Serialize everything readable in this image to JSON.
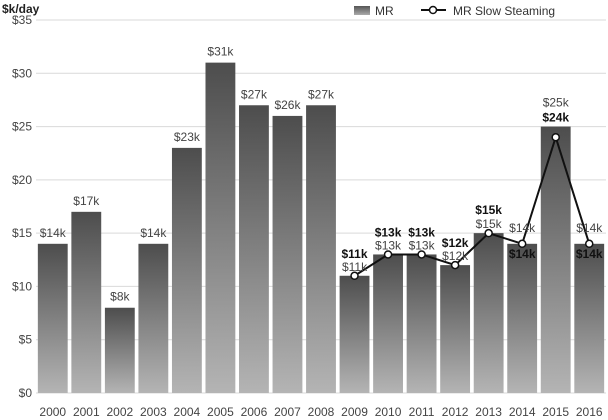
{
  "chart_data": {
    "type": "bar",
    "title": "",
    "xlabel": "",
    "ylabel": "$k/day",
    "ylim": [
      0,
      35
    ],
    "yticks": [
      0,
      5,
      10,
      15,
      20,
      25,
      30,
      35
    ],
    "ytick_labels": [
      "$0",
      "$5",
      "$10",
      "$15",
      "$20",
      "$25",
      "$30",
      "$35"
    ],
    "grid": true,
    "legend_position": "top-right",
    "categories": [
      "2000",
      "2001",
      "2002",
      "2003",
      "2004",
      "2005",
      "2006",
      "2007",
      "2008",
      "2009",
      "2010",
      "2011",
      "2012",
      "2013",
      "2014",
      "2015",
      "2016"
    ],
    "series": [
      {
        "name": "MR",
        "type": "bar",
        "values": [
          14,
          17,
          8,
          14,
          23,
          31,
          27,
          26,
          27,
          11,
          13,
          13,
          12,
          15,
          14,
          25,
          14
        ],
        "labels": [
          "$14k",
          "$17k",
          "$8k",
          "$14k",
          "$23k",
          "$31k",
          "$27k",
          "$26k",
          "$27k",
          "$11k",
          "$13k",
          "$13k",
          "$12k",
          "$15k",
          "$14k",
          "$25k",
          "$14k"
        ]
      },
      {
        "name": "MR Slow Steaming",
        "type": "line",
        "x": [
          "2009",
          "2010",
          "2011",
          "2012",
          "2013",
          "2014",
          "2015",
          "2016"
        ],
        "values": [
          11,
          13,
          13,
          12,
          15,
          14,
          24,
          14
        ],
        "labels": [
          "$11k",
          "$13k",
          "$13k",
          "$12k",
          "$15k",
          "$14k",
          "$24k",
          "$14k"
        ]
      }
    ]
  }
}
